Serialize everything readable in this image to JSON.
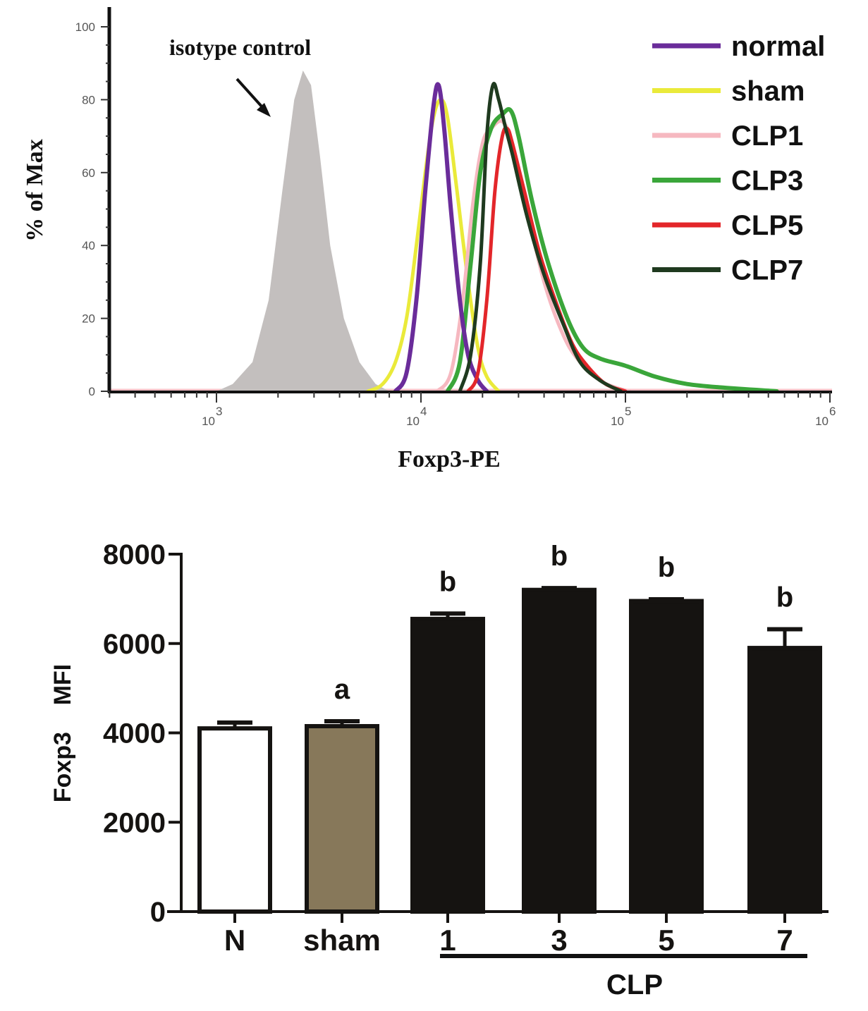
{
  "chart_data": [
    {
      "type": "line",
      "title": "",
      "xlabel": "Foxp3-PE",
      "ylabel": "% of Max",
      "xscale": "log",
      "xlim": [
        300,
        1000000
      ],
      "ylim": [
        0,
        100
      ],
      "yticks": [
        0,
        20,
        40,
        60,
        80,
        100
      ],
      "xticks": [
        {
          "value": 1000,
          "base": "10",
          "exp": "3"
        },
        {
          "value": 10000,
          "base": "10",
          "exp": "4"
        },
        {
          "value": 100000,
          "base": "10",
          "exp": "5"
        },
        {
          "value": 1000000,
          "base": "10",
          "exp": "6"
        }
      ],
      "annotation": {
        "text": "isotype control",
        "points_to_x": 2300,
        "points_to_y": 75
      },
      "legend": {
        "placement": "top-right"
      },
      "isotype": {
        "name": "isotype control",
        "color": "#c3bfbe",
        "x": [
          1000,
          1200,
          1500,
          1800,
          2100,
          2400,
          2650,
          2900,
          3200,
          3600,
          4200,
          5000,
          6000,
          7000
        ],
        "y": [
          0,
          2,
          8,
          25,
          55,
          80,
          88,
          84,
          65,
          40,
          20,
          8,
          2,
          0
        ]
      },
      "series": [
        {
          "name": "normal",
          "color": "#6a2c9a",
          "x": [
            7500,
            8500,
            9500,
            10500,
            11500,
            12200,
            13000,
            14000,
            15500,
            17000,
            19000,
            21000
          ],
          "y": [
            0,
            5,
            25,
            55,
            78,
            84,
            72,
            50,
            25,
            10,
            3,
            0
          ]
        },
        {
          "name": "sham",
          "color": "#eaea3a",
          "x": [
            5500,
            6500,
            7500,
            8500,
            9500,
            10500,
            11500,
            12500,
            13500,
            15000,
            17000,
            19000,
            21000,
            24000
          ],
          "y": [
            0,
            2,
            8,
            20,
            40,
            60,
            75,
            80,
            75,
            55,
            30,
            12,
            4,
            0
          ]
        },
        {
          "name": "CLP1",
          "color": "#f6b8c0",
          "x": [
            12000,
            14000,
            16000,
            18000,
            20000,
            22000,
            25000,
            28000,
            33000,
            40000,
            50000,
            60000,
            75000,
            90000,
            105000
          ],
          "y": [
            0,
            5,
            25,
            52,
            68,
            72,
            74,
            68,
            50,
            30,
            15,
            8,
            3,
            1,
            0
          ]
        },
        {
          "name": "CLP3",
          "color": "#3aa63a",
          "x": [
            13500,
            15500,
            17500,
            19500,
            22000,
            25000,
            27500,
            30000,
            35000,
            42000,
            52000,
            62000,
            75000,
            100000,
            140000,
            200000,
            300000,
            550000
          ],
          "y": [
            0,
            8,
            35,
            60,
            72,
            76,
            77,
            70,
            52,
            35,
            20,
            12,
            9,
            7,
            4,
            2,
            1,
            0
          ]
        },
        {
          "name": "CLP5",
          "color": "#e3262a",
          "x": [
            17000,
            19000,
            21000,
            23000,
            25000,
            26500,
            28000,
            32000,
            38000,
            46000,
            55000,
            65000,
            80000,
            100000
          ],
          "y": [
            0,
            5,
            25,
            55,
            70,
            72,
            68,
            55,
            38,
            24,
            13,
            7,
            2,
            0
          ]
        },
        {
          "name": "CLP7",
          "color": "#1f3a1f",
          "x": [
            15500,
            17500,
            19500,
            21000,
            22500,
            24000,
            26000,
            28000,
            33000,
            40000,
            50000,
            60000,
            75000,
            95000
          ],
          "y": [
            0,
            10,
            35,
            70,
            84,
            80,
            72,
            65,
            48,
            32,
            18,
            8,
            3,
            0
          ]
        }
      ]
    },
    {
      "type": "bar",
      "title": "",
      "xlabel": "CLP",
      "ylabel": "Foxp3    MFI",
      "ylim": [
        0,
        8000
      ],
      "yticks": [
        0,
        2000,
        4000,
        6000,
        8000
      ],
      "categories": [
        "N",
        "sham",
        "1",
        "3",
        "5",
        "7"
      ],
      "group_label": {
        "text": "CLP",
        "covers": [
          "1",
          "3",
          "5",
          "7"
        ]
      },
      "values": [
        4100,
        4150,
        6550,
        7200,
        6950,
        5900
      ],
      "errors": [
        130,
        110,
        120,
        40,
        40,
        420
      ],
      "significance": [
        "",
        "a",
        "b",
        "b",
        "b",
        "b"
      ],
      "colors": {
        "N": "#ffffff",
        "sham": "#87785a",
        "CLP": "#151311"
      }
    }
  ]
}
